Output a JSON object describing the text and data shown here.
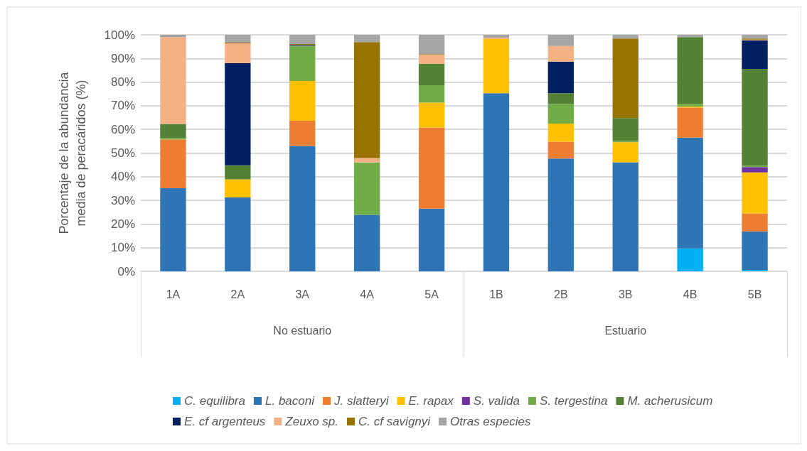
{
  "chart_data": {
    "type": "bar",
    "stacked": true,
    "ylabel": "Porcentaje de la abundancia media de peracáridos (%)",
    "categories": [
      "1A",
      "2A",
      "3A",
      "4A",
      "5A",
      "1B",
      "2B",
      "3B",
      "4B",
      "5B"
    ],
    "annotations": [
      "No estuario",
      "Estuario"
    ],
    "ylim": [
      0,
      100
    ],
    "yticks": [
      {
        "value": 0,
        "label": "0%"
      },
      {
        "value": 10,
        "label": "10%"
      },
      {
        "value": 20,
        "label": "20%"
      },
      {
        "value": 30,
        "label": "30%"
      },
      {
        "value": 40,
        "label": "40%"
      },
      {
        "value": 50,
        "label": "50%"
      },
      {
        "value": 60,
        "label": "60%"
      },
      {
        "value": 70,
        "label": "70%"
      },
      {
        "value": 80,
        "label": "80%"
      },
      {
        "value": 90,
        "label": "90%"
      },
      {
        "value": 100,
        "label": "100%"
      }
    ],
    "grid": "y",
    "legend": "bottom",
    "series": [
      {
        "name": "C. equilibra",
        "color": "#00b0f0",
        "values": [
          0,
          0,
          0,
          0,
          0,
          0,
          0,
          0,
          9.7,
          0.6
        ]
      },
      {
        "name": "L. baconi",
        "color": "#2e75b6",
        "values": [
          35.1,
          31.2,
          53.0,
          23.9,
          26.5,
          75.3,
          47.7,
          46.1,
          46.8,
          16.3
        ]
      },
      {
        "name": "J. slatteryi",
        "color": "#ed7d31",
        "values": [
          20.7,
          0,
          10.7,
          0,
          34.3,
          0,
          7.1,
          0,
          12.7,
          7.6
        ]
      },
      {
        "name": "E. rapax",
        "color": "#ffc000",
        "values": [
          0,
          7.7,
          16.8,
          0,
          10.5,
          22.9,
          7.7,
          8.5,
          0.5,
          17.3
        ]
      },
      {
        "name": "S. valida",
        "color": "#7030a0",
        "values": [
          0,
          0,
          0,
          0,
          0,
          0,
          0,
          0,
          0,
          2.3
        ]
      },
      {
        "name": "S. tergestina",
        "color": "#70ad47",
        "values": [
          0.5,
          0,
          14.6,
          22.1,
          7.4,
          0,
          8.2,
          0.5,
          1.0,
          0.5
        ]
      },
      {
        "name": "M. acherusicum",
        "color": "#548235",
        "values": [
          6.0,
          5.9,
          0.3,
          0,
          9.0,
          0,
          4.6,
          9.7,
          28.3,
          41.0
        ]
      },
      {
        "name": "E. cf argenteus",
        "color": "#002060",
        "values": [
          0,
          43.3,
          0.3,
          0,
          0,
          0,
          13.4,
          0,
          0,
          12.1
        ]
      },
      {
        "name": "Zeuxo sp.",
        "color": "#f4b183",
        "values": [
          36.7,
          8.3,
          0,
          1.9,
          3.8,
          0.5,
          6.6,
          0,
          0,
          0.3
        ]
      },
      {
        "name": "C. cf savignyi",
        "color": "#997300",
        "values": [
          0,
          0.3,
          0.4,
          49.0,
          0.3,
          0,
          0,
          33.6,
          0,
          0.4
        ]
      },
      {
        "name": "Otras especies",
        "color": "#a5a5a5",
        "values": [
          1.0,
          3.3,
          3.9,
          3.1,
          8.2,
          1.3,
          4.7,
          1.6,
          1.0,
          1.6
        ]
      }
    ]
  }
}
